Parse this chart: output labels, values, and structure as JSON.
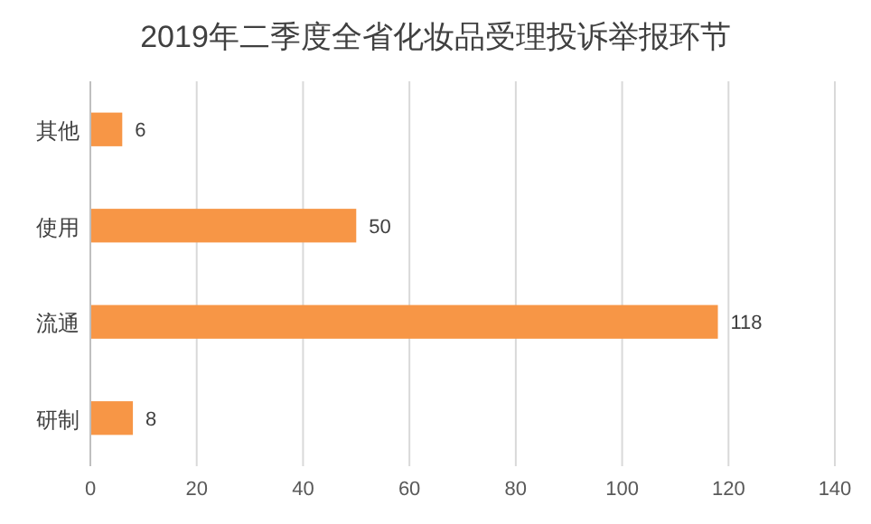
{
  "chart_data": {
    "type": "bar",
    "orientation": "horizontal",
    "title": "2019年二季度全省化妆品受理投诉举报环节",
    "categories": [
      "其他",
      "使用",
      "流通",
      "研制"
    ],
    "series": [
      {
        "color": "#f79646",
        "values": [
          6,
          50,
          118,
          8
        ]
      }
    ],
    "xlim": [
      0,
      140
    ],
    "xticks": [
      0,
      20,
      40,
      60,
      80,
      100,
      120,
      140
    ],
    "grid": "x",
    "data_labels": true
  }
}
